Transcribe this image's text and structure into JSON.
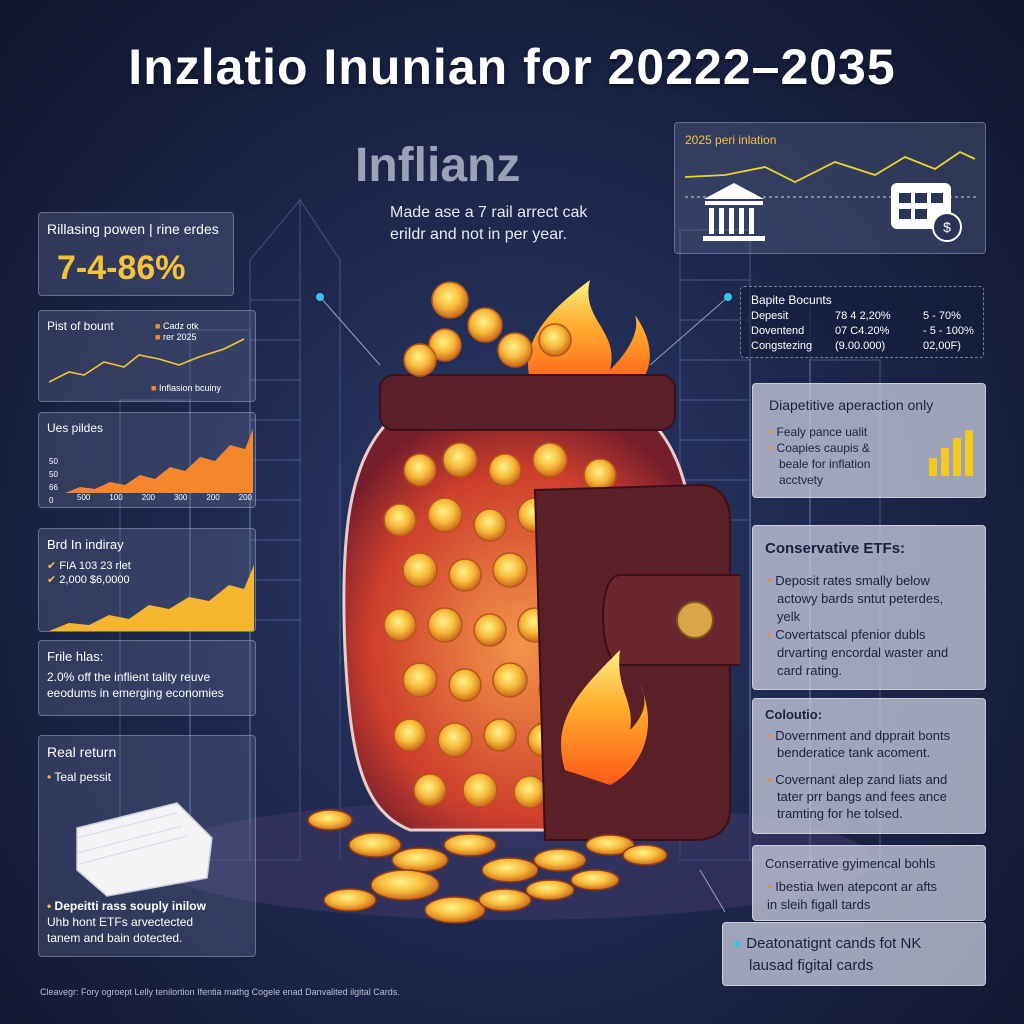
{
  "title": "Inzlatio Inunian for 20222–2035",
  "subtitle": "Inflianz",
  "tagline": [
    "Made ase a 7 rail arrect cak",
    "erildr and not in per year."
  ],
  "left": {
    "card1": {
      "label": "Rillasing powen | rine erdes",
      "value": "7-4-86%"
    },
    "card2": {
      "label": "Pist of bount",
      "legend1": "Cadz otk",
      "legend2": "rer 2025",
      "legend3": "Inflasion bcuiny"
    },
    "card3": {
      "label": "Ues pildes",
      "yticks": [
        "50",
        "50",
        "66",
        "0"
      ],
      "xticks": [
        "500",
        "100",
        "200",
        "300",
        "200",
        "200"
      ]
    },
    "card4": {
      "label": "Brd In indiray",
      "line1": "FIA 103 23 rlet",
      "line2": "2,000 $6,0000"
    },
    "card5": {
      "label": "Frile hlas:",
      "line1": "2.0% off the inflient tality reuve",
      "line2": "eeodums in emerging economies"
    },
    "card6": {
      "label": "Real return",
      "bullet": "Teal pessit",
      "text1": "Depeitti rass souply inilow",
      "text2": "Uhb hont ETFs arvectected",
      "text3": "tanem and bain dotected."
    }
  },
  "right": {
    "card1": {
      "label": "2025 peri inlation"
    },
    "card2": {
      "label": "Bapite Bocunts",
      "rows": [
        {
          "name": "Depesit",
          "a": "78 4 2,20%",
          "b": "5 - 70%"
        },
        {
          "name": "Doventend",
          "a": "07 C4.20%",
          "b": "- 5 - 100%"
        },
        {
          "name": "Congstezing",
          "a": "(9.00.000)",
          "b": "02,00F)"
        }
      ]
    },
    "card3": {
      "label": "Diapetitive aperaction only",
      "b1": "Fealy pance ualit",
      "b2": "Coapies caupis &",
      "b3": "beale for inflation",
      "b4": "acctvety"
    },
    "card4": {
      "label": "Conservative ETFs:",
      "b1": "Deposit rates smally below",
      "b1b": "actowy bards sntut peterdes,",
      "b1c": "yelk",
      "b2": "Covertatscal pfenior dubls",
      "b2b": "drvarting encordal waster and",
      "b2c": "card rating."
    },
    "card5": {
      "label": "Coloutio:",
      "b1": "Dovernment and dpprait bonts",
      "b1b": "benderatice tank acoment.",
      "b2": "Covernant alep zand liats and",
      "b2b": "tater prr bangs and fees ance",
      "b2c": "tramting for he tolsed."
    },
    "card6": {
      "label": "Conserrative gyimencal bohls",
      "b1": "Ibestia lwen atepcont ar afts",
      "b1b": "in sleih figall tards"
    },
    "card7": {
      "line1": "Deatonatignt cands fot NK",
      "line2": "lausad figital cards"
    }
  },
  "footnote": "Cleavegr: Fory ogroept Lelly tenilortion Ifentia mathg Cogele enad Danvalited ilgital Cards."
}
